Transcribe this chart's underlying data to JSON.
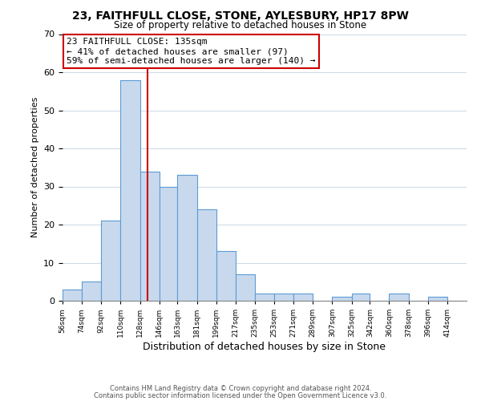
{
  "title": "23, FAITHFULL CLOSE, STONE, AYLESBURY, HP17 8PW",
  "subtitle": "Size of property relative to detached houses in Stone",
  "xlabel": "Distribution of detached houses by size in Stone",
  "ylabel": "Number of detached properties",
  "footer_line1": "Contains HM Land Registry data © Crown copyright and database right 2024.",
  "footer_line2": "Contains public sector information licensed under the Open Government Licence v3.0.",
  "bin_labels": [
    "56sqm",
    "74sqm",
    "92sqm",
    "110sqm",
    "128sqm",
    "146sqm",
    "163sqm",
    "181sqm",
    "199sqm",
    "217sqm",
    "235sqm",
    "253sqm",
    "271sqm",
    "289sqm",
    "307sqm",
    "325sqm",
    "342sqm",
    "360sqm",
    "378sqm",
    "396sqm",
    "414sqm"
  ],
  "bar_values": [
    3,
    5,
    21,
    58,
    34,
    30,
    33,
    24,
    13,
    7,
    2,
    2,
    2,
    0,
    1,
    2,
    0,
    2,
    0,
    1,
    0
  ],
  "bar_color": "#c8d9ed",
  "bar_edge_color": "#5b9bd5",
  "annotation_line_color": "#cc0000",
  "annotation_box_text": "23 FAITHFULL CLOSE: 135sqm\n← 41% of detached houses are smaller (97)\n59% of semi-detached houses are larger (140) →",
  "ylim": [
    0,
    70
  ],
  "yticks": [
    0,
    10,
    20,
    30,
    40,
    50,
    60,
    70
  ],
  "background_color": "#ffffff",
  "grid_color": "#d0dce8",
  "bin_edges": [
    56,
    74,
    92,
    110,
    128,
    146,
    163,
    181,
    199,
    217,
    235,
    253,
    271,
    289,
    307,
    325,
    342,
    360,
    378,
    396,
    414,
    432
  ]
}
